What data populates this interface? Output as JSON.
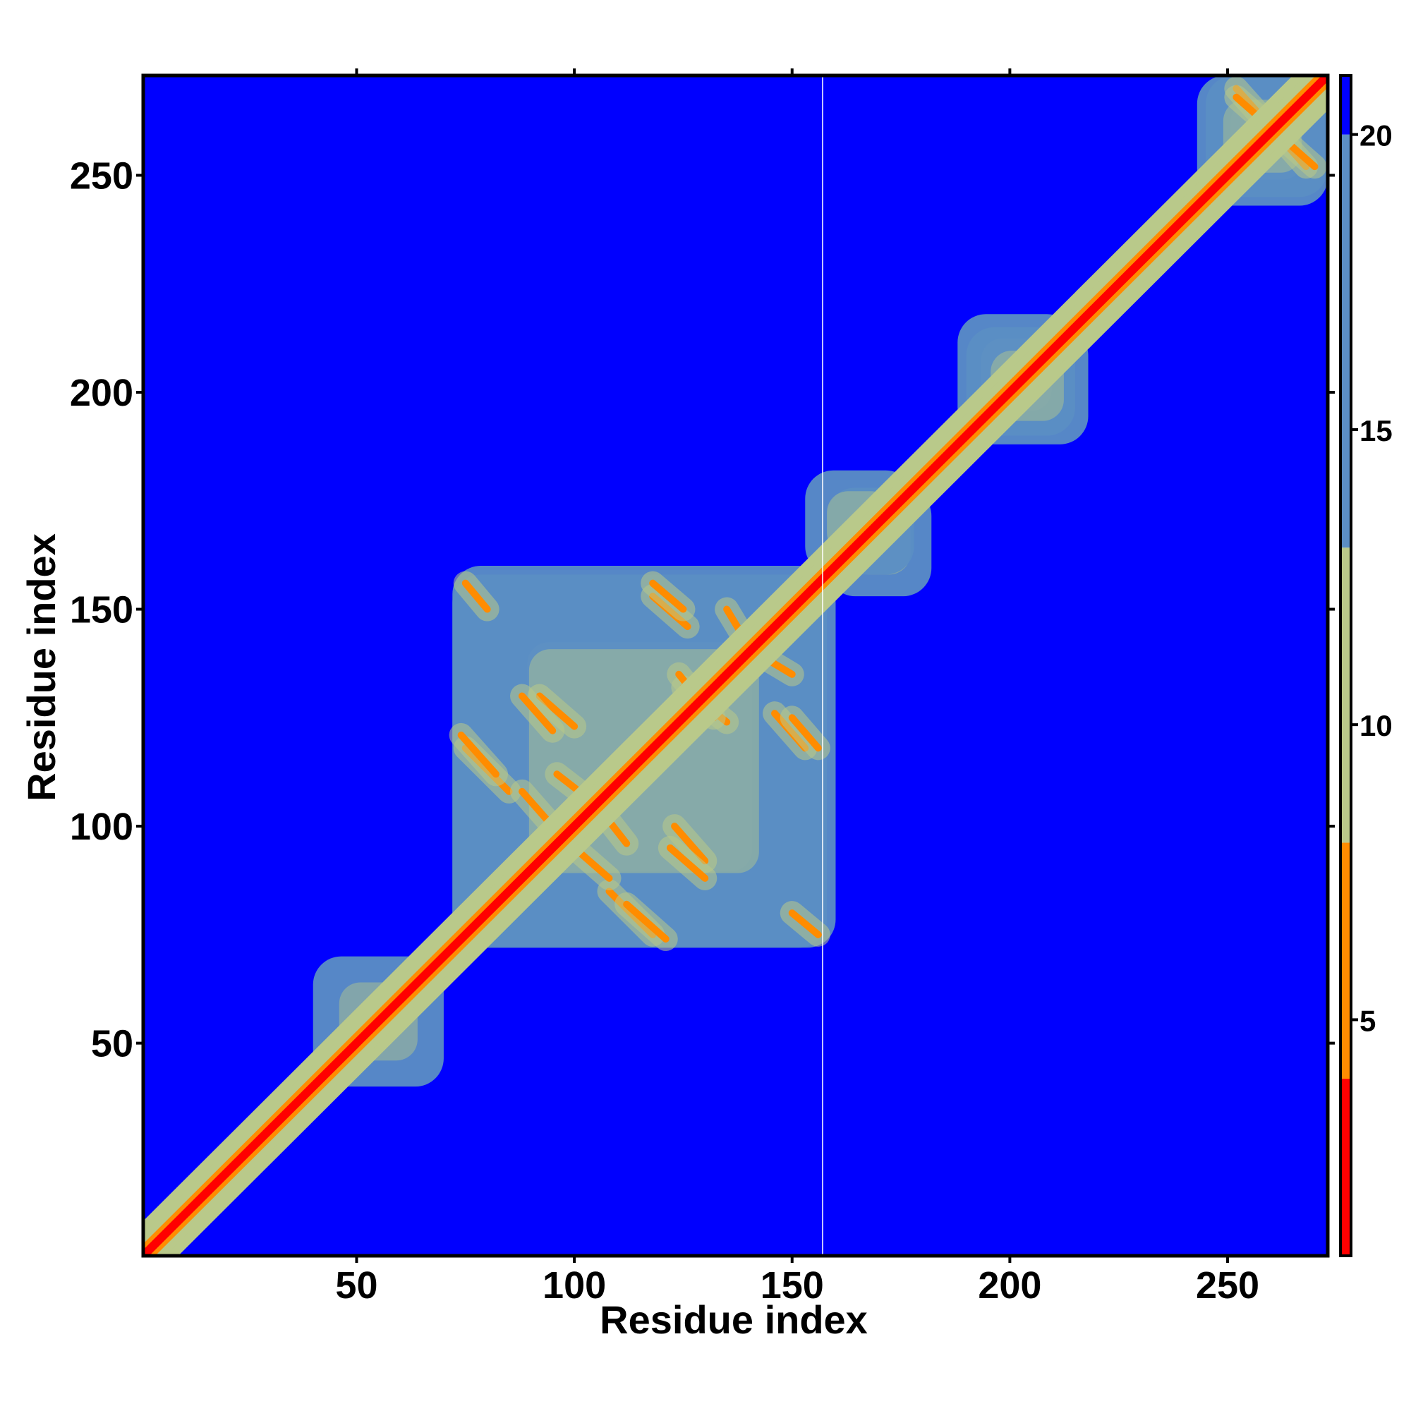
{
  "chart_data": {
    "type": "heatmap",
    "title": "",
    "xlabel": "Residue index",
    "ylabel": "Residue index",
    "xlim": [
      1,
      273
    ],
    "ylim": [
      1,
      273
    ],
    "x_ticks": [
      50,
      100,
      150,
      200,
      250
    ],
    "y_ticks": [
      50,
      100,
      150,
      200,
      250
    ],
    "colorbar": {
      "range": [
        1,
        21
      ],
      "ticks": [
        5,
        10,
        15,
        20
      ],
      "colors": [
        "#ff0000",
        "#ff8c00",
        "#b9c98a",
        "#5b8ec4",
        "#0000ff"
      ],
      "boundaries": [
        1,
        4,
        8,
        13,
        20,
        21
      ]
    },
    "gap_column_residue": 157,
    "description_of_values": "pairwise residue distance map",
    "diagonal_width": 1,
    "clusters": [
      {
        "x": [
          72,
          158
        ],
        "y": [
          72,
          160
        ],
        "value": 15
      },
      {
        "x": [
          158,
          182
        ],
        "y": [
          153,
          178
        ],
        "value": 13
      },
      {
        "x": [
          188,
          215
        ],
        "y": [
          190,
          218
        ],
        "value": 14
      },
      {
        "x": [
          245,
          273
        ],
        "y": [
          243,
          273
        ],
        "value": 16
      },
      {
        "x": [
          40,
          70
        ],
        "y": [
          40,
          70
        ],
        "value": 13
      }
    ],
    "contact_lines": [
      {
        "from": [
          92,
          130
        ],
        "to": [
          100,
          123
        ],
        "value": 7
      },
      {
        "from": [
          75,
          118
        ],
        "to": [
          85,
          108
        ],
        "value": 7
      },
      {
        "from": [
          118,
          153
        ],
        "to": [
          126,
          146
        ],
        "value": 7
      },
      {
        "from": [
          140,
          141
        ],
        "to": [
          150,
          135
        ],
        "value": 7
      },
      {
        "from": [
          125,
          132
        ],
        "to": [
          135,
          124
        ],
        "value": 7
      },
      {
        "from": [
          150,
          125
        ],
        "to": [
          156,
          118
        ],
        "value": 7
      },
      {
        "from": [
          100,
          95
        ],
        "to": [
          108,
          88
        ],
        "value": 7
      },
      {
        "from": [
          112,
          82
        ],
        "to": [
          121,
          74
        ],
        "value": 7
      },
      {
        "from": [
          122,
          95
        ],
        "to": [
          130,
          88
        ],
        "value": 7
      },
      {
        "from": [
          105,
          105
        ],
        "to": [
          112,
          96
        ],
        "value": 7
      },
      {
        "from": [
          150,
          80
        ],
        "to": [
          156,
          75
        ],
        "value": 7
      },
      {
        "from": [
          252,
          270
        ],
        "to": [
          268,
          252
        ],
        "value": 7
      }
    ]
  }
}
